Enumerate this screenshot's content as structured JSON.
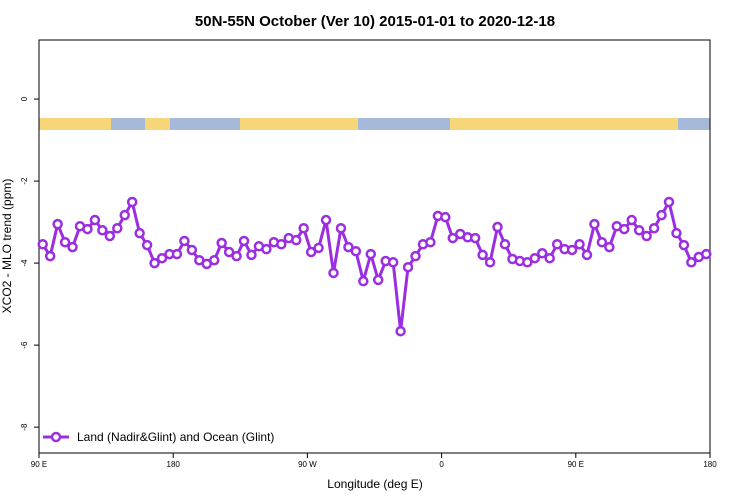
{
  "chart_data": {
    "type": "line",
    "title": "50N-55N October (Ver 10)   2015-01-01 to 2020-12-18",
    "x_label": "Longitude (deg E)",
    "y_label": "XCO2 - MLO trend (ppm)",
    "x": [
      92.5,
      97.5,
      102.5,
      107.5,
      112.5,
      117.5,
      122.5,
      127.5,
      132.5,
      137.5,
      142.5,
      147.5,
      152.5,
      157.5,
      162.5,
      167.5,
      172.5,
      177.5,
      182.5,
      187.5,
      192.5,
      197.5,
      202.5,
      207.5,
      212.5,
      217.5,
      222.5,
      227.5,
      232.5,
      237.5,
      242.5,
      247.5,
      252.5,
      257.5,
      262.5,
      267.5,
      272.5,
      277.5,
      282.5,
      287.5,
      292.5,
      297.5,
      302.5,
      307.5,
      312.5,
      317.5,
      322.5,
      327.5,
      332.5,
      337.5,
      342.5,
      347.5,
      352.5,
      357.5,
      362.5,
      367.5,
      372.5,
      377.5,
      382.5,
      387.5,
      392.5,
      397.5,
      402.5,
      407.5,
      412.5,
      417.5,
      422.5,
      427.5,
      432.5,
      437.5,
      442.5,
      447.5,
      452.5,
      457.5,
      462.5,
      467.5,
      472.5,
      477.5,
      482.5,
      487.5,
      492.5,
      497.5,
      502.5,
      507.5,
      512.5,
      517.5,
      522.5,
      527.5,
      532.5,
      537.5
    ],
    "series": [
      {
        "name": "Land (Nadir&Glint) and Ocean (Glint)",
        "color": "#9b2ee0",
        "values": [
          -3.54,
          -3.83,
          -3.05,
          -3.49,
          -3.61,
          -3.1,
          -3.17,
          -2.95,
          -3.2,
          -3.34,
          -3.15,
          -2.83,
          -2.51,
          -3.27,
          -3.56,
          -4.0,
          -3.88,
          -3.78,
          -3.78,
          -3.46,
          -3.68,
          -3.93,
          -4.02,
          -3.93,
          -3.51,
          -3.73,
          -3.83,
          -3.46,
          -3.8,
          -3.59,
          -3.66,
          -3.49,
          -3.54,
          -3.39,
          -3.44,
          -3.15,
          -3.73,
          -3.63,
          -2.95,
          -4.24,
          -3.15,
          -3.61,
          -3.71,
          -4.44,
          -3.78,
          -4.41,
          -3.95,
          -3.98,
          -5.66,
          -4.1,
          -3.83,
          -3.54,
          -3.49,
          -2.85,
          -2.88,
          -3.39,
          -3.29,
          -3.37,
          -3.39,
          -3.8,
          -3.98,
          -3.12,
          -3.54,
          -3.9,
          -3.95,
          -3.98,
          -3.88,
          -3.76,
          -3.88,
          -3.54,
          -3.66,
          -3.68,
          -3.54,
          -3.8,
          -3.05,
          -3.49,
          -3.61,
          -3.1,
          -3.17,
          -2.95,
          -3.2,
          -3.34,
          -3.15,
          -2.83,
          -2.51,
          -3.27,
          -3.56,
          -3.98,
          -3.85,
          -3.78
        ]
      }
    ],
    "xlim": [
      90,
      540
    ],
    "ylim": [
      -8.63,
      1.44
    ],
    "xticks": [
      {
        "value": 90,
        "label": "90 E"
      },
      180,
      {
        "value": 270,
        "label": "90 W"
      },
      {
        "value": 360,
        "label": "0"
      },
      {
        "value": 450,
        "label": "90 E"
      },
      {
        "value": 540,
        "label": "180"
      }
    ],
    "yticks": [
      0,
      -2,
      -4,
      -6,
      -8
    ],
    "grid": false,
    "legend": "lower left"
  }
}
